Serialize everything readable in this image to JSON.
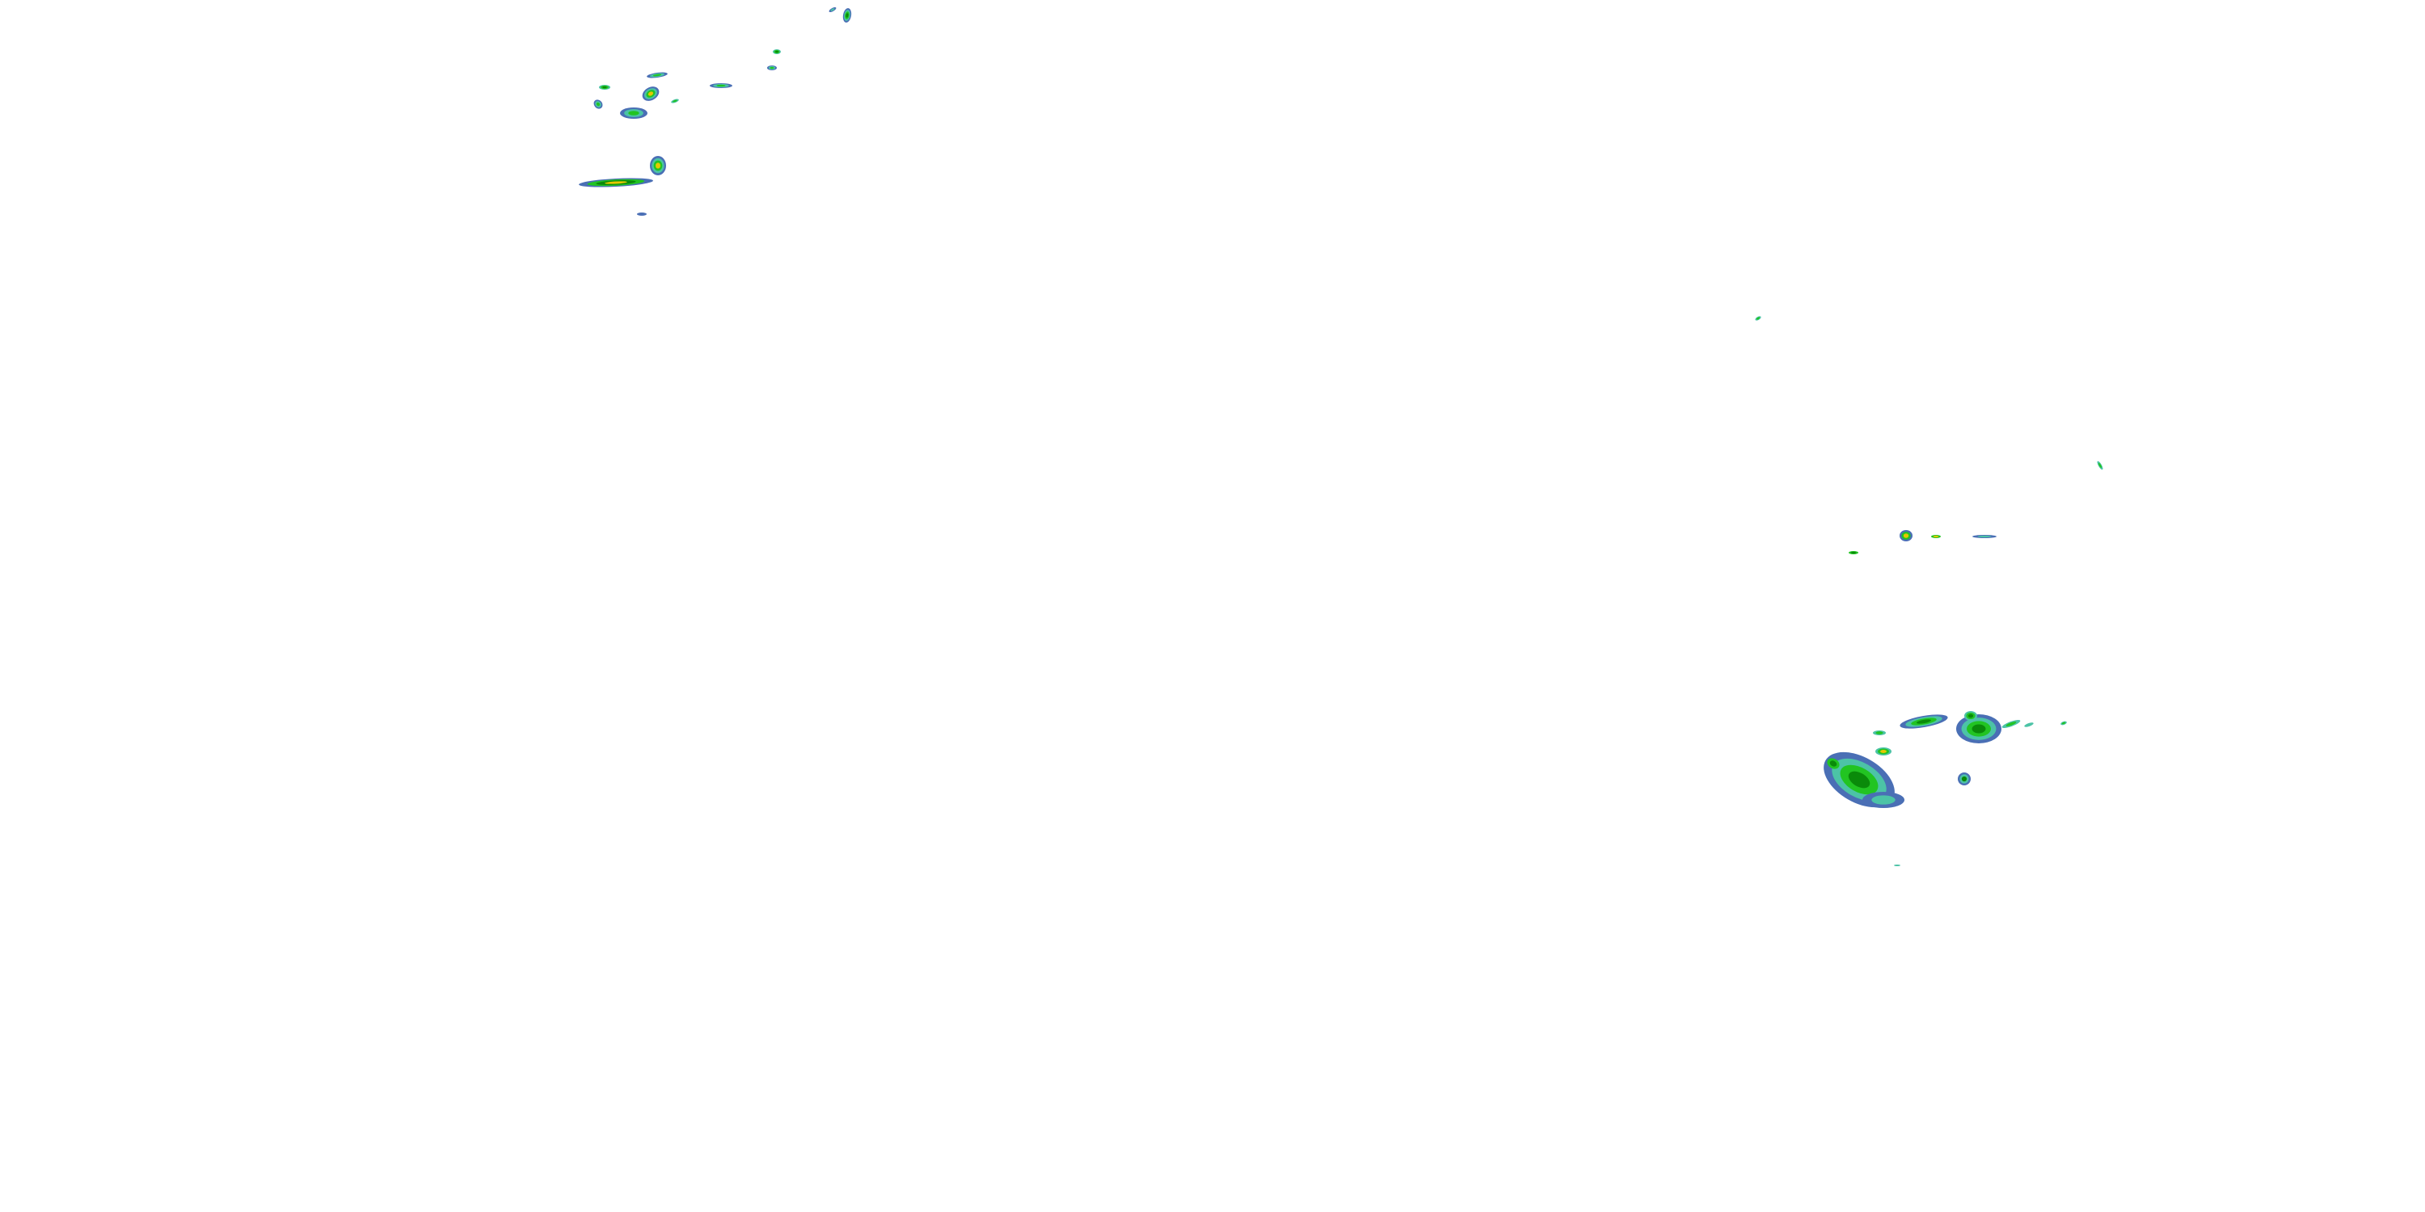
{
  "map": {
    "layer": "precipitation-radar",
    "background": "#ffffff",
    "colors": {
      "light": "#4a6fb5",
      "light_moderate": "#4cc3a6",
      "moderate": "#22c422",
      "heavy": "#0a8a0a",
      "very_heavy": "#e5c800"
    }
  }
}
